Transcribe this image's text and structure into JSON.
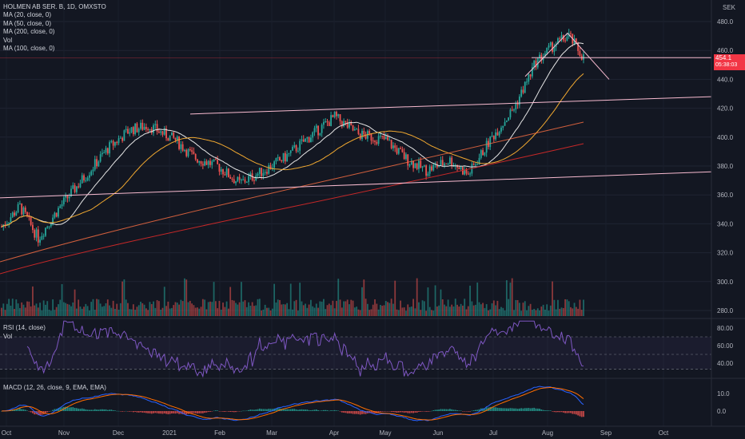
{
  "header": {
    "symbol_line": "HOLMEN AB SER. B, 1D, OMXSTO",
    "currency": "SEK",
    "indicators": [
      "MA (20, close, 0)",
      "MA (50, close, 0)",
      "MA (200, close, 0)",
      "Vol",
      "MA (100, close, 0)"
    ]
  },
  "last_price": {
    "value": "454.1",
    "countdown": "05:38:03"
  },
  "rsi_pane": {
    "label": "RSI (14, close)",
    "sublabel": "Vol"
  },
  "macd_pane": {
    "label": "MACD (12, 26, close, 9, EMA, EMA)"
  },
  "colors": {
    "up": "#26a69a",
    "down": "#ef5350",
    "ma20": "#e6e6e6",
    "ma50": "#f0a830",
    "ma100": "#ff7043",
    "ma200": "#c62828",
    "trendline": "#f8bbd0",
    "rsi": "#7e57c2",
    "macd": "#2962ff",
    "signal": "#ff6d00"
  },
  "chart_data": [
    {
      "type": "candlestick",
      "title": "HOLMEN AB SER. B, 1D, OMXSTO",
      "price_axis": {
        "ticks": [
          280,
          300,
          320,
          340,
          360,
          380,
          400,
          420,
          440,
          460,
          480
        ],
        "range": [
          275,
          488
        ],
        "unit": "SEK"
      },
      "time_axis": {
        "labels": [
          "Oct",
          "Nov",
          "Dec",
          "2021",
          "Feb",
          "Mar",
          "Apr",
          "May",
          "Jun",
          "Jul",
          "Aug",
          "Sep",
          "Oct"
        ]
      },
      "series_close_monthly": [
        {
          "date": "2020-10-01",
          "close": 342
        },
        {
          "date": "2020-11-01",
          "close": 345
        },
        {
          "date": "2020-12-01",
          "close": 392
        },
        {
          "date": "2021-01-04",
          "close": 406
        },
        {
          "date": "2021-02-01",
          "close": 388
        },
        {
          "date": "2021-03-01",
          "close": 376
        },
        {
          "date": "2021-04-01",
          "close": 405
        },
        {
          "date": "2021-05-03",
          "close": 402
        },
        {
          "date": "2021-06-01",
          "close": 381
        },
        {
          "date": "2021-07-01",
          "close": 405
        },
        {
          "date": "2021-08-02",
          "close": 455
        },
        {
          "date": "2021-08-16",
          "close": 454.1
        }
      ],
      "key_levels": {
        "peak": 472,
        "horizontal_line": 455,
        "channel_top_start": 416,
        "channel_bottom_start": 358
      }
    },
    {
      "type": "line",
      "title": "RSI (14, close)",
      "y_ticks": [
        40,
        60,
        80
      ],
      "bands": [
        33,
        70
      ]
    },
    {
      "type": "line",
      "title": "MACD (12, 26, close, 9, EMA, EMA)",
      "y_ticks": [
        0.0,
        10.0
      ]
    }
  ]
}
